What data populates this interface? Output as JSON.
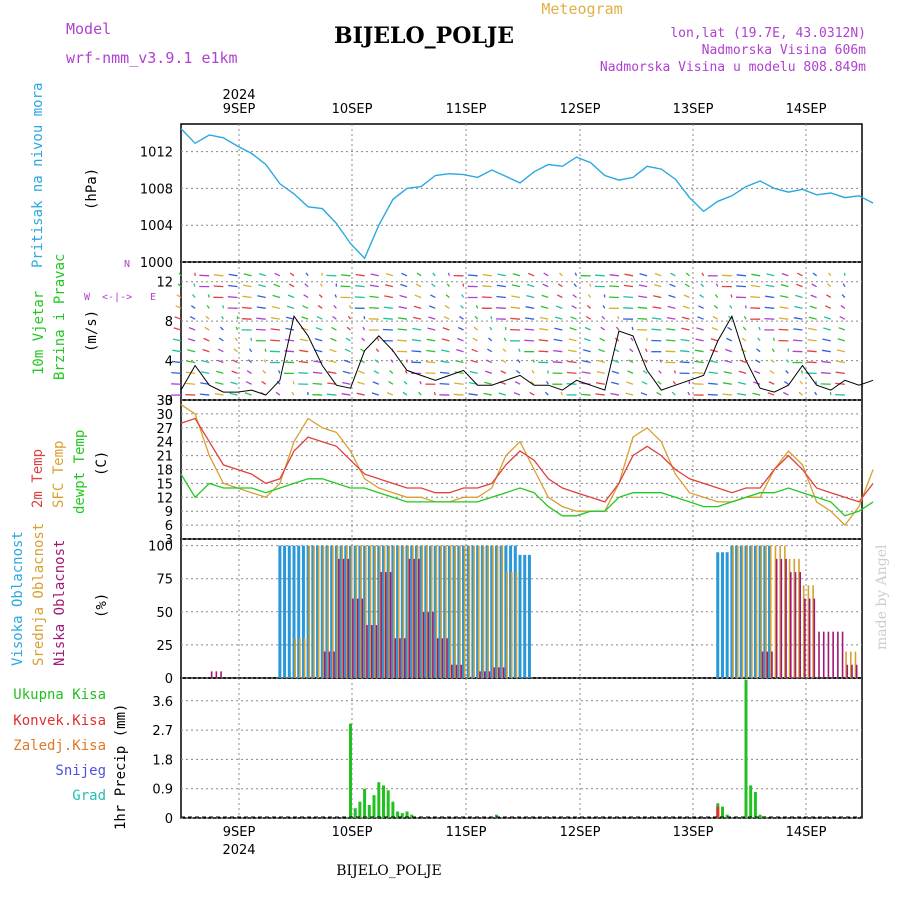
{
  "header": {
    "model_label": "Model",
    "model_value": "wrf-nmm_v3.9.1 e1km",
    "title": "BIJELO_POLJE",
    "meteogram": "Meteogram",
    "lonlat": "lon,lat (19.7E, 43.0312N)",
    "elev": "Nadmorska Visina 606m",
    "elev_model": "Nadmorska Visina u modelu 808.849m",
    "footer": "BIJELO_POLJE",
    "watermark": "made by Angel"
  },
  "colors": {
    "pressure": "#2aa8e0",
    "temp2m": "#e04040",
    "sfc": "#d8a030",
    "dew": "#22c822",
    "high_cloud": "#2898d8",
    "mid_cloud": "#d8a030",
    "low_cloud": "#a01878",
    "total_precip": "#22c022",
    "conv_precip": "#e03030",
    "purple": "#b040d0"
  },
  "x_axis": {
    "year": "2024",
    "days": [
      "9SEP",
      "10SEP",
      "11SEP",
      "12SEP",
      "13SEP",
      "14SEP"
    ]
  },
  "panels": {
    "pressure": {
      "label": "Pritisak na nivou mora",
      "unit": "(hPa)",
      "ticks": [
        "1012",
        "1008",
        "1004",
        "1000"
      ]
    },
    "wind": {
      "label1": "10m Vjetar",
      "label2": "Brzina i Pravac",
      "unit": "(m/s)",
      "ticks": [
        "12",
        "8",
        "4",
        "0"
      ],
      "compass": [
        "N",
        "<-|->",
        "E",
        "W"
      ]
    },
    "temp": {
      "label1": "2m Temp",
      "label2": "SFC Temp",
      "label3": "dewpt Temp",
      "unit": "(C)",
      "ticks": [
        "33",
        "30",
        "27",
        "24",
        "21",
        "18",
        "15",
        "12",
        "9",
        "6",
        "3"
      ]
    },
    "cloud": {
      "label1": "Visoka Oblacnost",
      "label2": "Srednja Oblacnost",
      "label3": "Niska Oblacnost",
      "unit": "(%)",
      "ticks": [
        "100",
        "75",
        "50",
        "25",
        "0"
      ]
    },
    "precip": {
      "labels": [
        "Ukupna Kisa",
        "Konvek.Kisa",
        "Zaledj.Kisa",
        "Snijeg",
        "Grad"
      ],
      "unit": "1hr Precip (mm)",
      "ticks": [
        "3.6",
        "2.7",
        "1.8",
        "0.9",
        "0"
      ]
    }
  },
  "chart_data": [
    {
      "type": "line",
      "panel": "pressure",
      "ylabel": "Pritisak na nivou mora (hPa)",
      "ylim": [
        1000,
        1015
      ],
      "x_hours": [
        0,
        3,
        6,
        9,
        12,
        15,
        18,
        21,
        24,
        27,
        30,
        33,
        36,
        39,
        42,
        45,
        48,
        51,
        54,
        57,
        60,
        63,
        66,
        69,
        72,
        75,
        78,
        81,
        84,
        87,
        90,
        93,
        96,
        99,
        102,
        105,
        108,
        111,
        114,
        117,
        120,
        123,
        126,
        129,
        132,
        135,
        138,
        141,
        144,
        147
      ],
      "values": [
        1014.5,
        1012.9,
        1013.8,
        1013.5,
        1012.6,
        1011.8,
        1010.6,
        1008.5,
        1007.4,
        1006.0,
        1005.8,
        1004.2,
        1002.0,
        1000.4,
        1004.0,
        1006.8,
        1008.0,
        1008.2,
        1009.4,
        1009.6,
        1009.5,
        1009.2,
        1010.0,
        1009.3,
        1008.6,
        1009.8,
        1010.6,
        1010.4,
        1011.4,
        1010.8,
        1009.4,
        1008.9,
        1009.2,
        1010.4,
        1010.1,
        1009.0,
        1007.0,
        1005.5,
        1006.6,
        1007.2,
        1008.2,
        1008.8,
        1008.0,
        1007.6,
        1007.9,
        1007.3,
        1007.5,
        1007.0,
        1007.2,
        1006.4
      ]
    },
    {
      "type": "line",
      "panel": "wind",
      "ylabel": "10m Vjetar Brzina i Pravac (m/s)",
      "ylim": [
        0,
        14
      ],
      "series": [
        {
          "name": "10m Vjetar",
          "x_hours": [
            0,
            3,
            6,
            9,
            12,
            15,
            18,
            21,
            24,
            27,
            30,
            33,
            36,
            39,
            42,
            45,
            48,
            51,
            54,
            57,
            60,
            63,
            66,
            69,
            72,
            75,
            78,
            81,
            84,
            87,
            90,
            93,
            96,
            99,
            102,
            105,
            108,
            111,
            114,
            117,
            120,
            123,
            126,
            129,
            132,
            135,
            138,
            141,
            144,
            147
          ],
          "values": [
            1.0,
            3.5,
            1.5,
            0.8,
            0.8,
            1.0,
            0.5,
            2.0,
            8.5,
            6.5,
            3.5,
            1.5,
            1.2,
            5.0,
            6.5,
            5.0,
            3.0,
            2.5,
            2.0,
            2.5,
            3.0,
            1.5,
            1.5,
            2.0,
            2.5,
            1.5,
            1.5,
            1.0,
            2.0,
            1.5,
            1.0,
            7.0,
            6.5,
            3.0,
            1.0,
            1.5,
            2.0,
            2.5,
            6.0,
            8.5,
            4.0,
            1.2,
            0.8,
            1.5,
            3.5,
            1.5,
            1.0,
            2.0,
            1.5,
            2.0
          ]
        }
      ]
    },
    {
      "type": "line",
      "panel": "temp",
      "ylabel": "(C)",
      "ylim": [
        3,
        33
      ],
      "x_hours": [
        0,
        3,
        6,
        9,
        12,
        15,
        18,
        21,
        24,
        27,
        30,
        33,
        36,
        39,
        42,
        45,
        48,
        51,
        54,
        57,
        60,
        63,
        66,
        69,
        72,
        75,
        78,
        81,
        84,
        87,
        90,
        93,
        96,
        99,
        102,
        105,
        108,
        111,
        114,
        117,
        120,
        123,
        126,
        129,
        132,
        135,
        138,
        141,
        144,
        147
      ],
      "series": [
        {
          "name": "2m Temp",
          "values": [
            28,
            29,
            24,
            19,
            18,
            17,
            15,
            16,
            22,
            25,
            24,
            23,
            20,
            17,
            16,
            15,
            14,
            14,
            13,
            13,
            14,
            14,
            15,
            19,
            22,
            20,
            16,
            14,
            13,
            12,
            11,
            15,
            21,
            23,
            21,
            18,
            16,
            15,
            14,
            13,
            14,
            14,
            18,
            21,
            18,
            14,
            13,
            12,
            11,
            15
          ]
        },
        {
          "name": "SFC Temp",
          "values": [
            32,
            30,
            21,
            15,
            14,
            13,
            12,
            15,
            24,
            29,
            27,
            26,
            22,
            16,
            14,
            13,
            12,
            12,
            11,
            11,
            12,
            12,
            14,
            21,
            24,
            18,
            12,
            10,
            9,
            9,
            9,
            15,
            25,
            27,
            24,
            17,
            13,
            12,
            11,
            11,
            12,
            12,
            18,
            22,
            19,
            11,
            9,
            6,
            10,
            18
          ]
        },
        {
          "name": "dewpt Temp",
          "values": [
            17,
            12,
            15,
            14,
            14,
            14,
            13,
            14,
            15,
            16,
            16,
            15,
            14,
            14,
            13,
            12,
            11,
            11,
            11,
            11,
            11,
            11,
            12,
            13,
            14,
            13,
            10,
            8,
            8,
            9,
            9,
            12,
            13,
            13,
            13,
            12,
            11,
            10,
            10,
            11,
            12,
            13,
            13,
            14,
            13,
            12,
            11,
            8,
            9,
            11
          ]
        }
      ]
    },
    {
      "type": "bar",
      "panel": "cloud",
      "ylabel": "(%)",
      "ylim": [
        0,
        100
      ],
      "x_hours": [
        0,
        3,
        6,
        9,
        12,
        15,
        18,
        21,
        24,
        27,
        30,
        33,
        36,
        39,
        42,
        45,
        48,
        51,
        54,
        57,
        60,
        63,
        66,
        69,
        72,
        75,
        78,
        81,
        84,
        87,
        90,
        93,
        96,
        99,
        102,
        105,
        108,
        111,
        114,
        117,
        120,
        123,
        126,
        129,
        132,
        135,
        138,
        141,
        144,
        147
      ],
      "series": [
        {
          "name": "Visoka Oblacnost",
          "values": [
            0,
            0,
            0,
            0,
            0,
            0,
            0,
            100,
            100,
            100,
            100,
            100,
            100,
            100,
            100,
            100,
            100,
            100,
            100,
            100,
            100,
            100,
            100,
            100,
            93,
            0,
            0,
            0,
            0,
            0,
            0,
            0,
            0,
            0,
            0,
            0,
            0,
            0,
            95,
            100,
            100,
            100,
            0,
            0,
            0,
            0,
            0,
            0,
            0,
            0
          ]
        },
        {
          "name": "Srednja Oblacnost",
          "values": [
            0,
            0,
            0,
            0,
            0,
            0,
            0,
            0,
            30,
            100,
            100,
            100,
            100,
            100,
            100,
            100,
            100,
            100,
            100,
            100,
            100,
            100,
            100,
            80,
            0,
            0,
            0,
            0,
            0,
            0,
            0,
            0,
            0,
            0,
            0,
            0,
            0,
            0,
            0,
            100,
            100,
            100,
            100,
            90,
            70,
            0,
            0,
            20,
            100,
            100
          ]
        },
        {
          "name": "Niska Oblacnost",
          "values": [
            0,
            0,
            5,
            0,
            0,
            0,
            0,
            0,
            0,
            0,
            20,
            90,
            60,
            40,
            80,
            30,
            90,
            50,
            30,
            10,
            0,
            5,
            8,
            0,
            0,
            0,
            0,
            0,
            0,
            0,
            0,
            0,
            0,
            0,
            0,
            0,
            0,
            0,
            0,
            0,
            0,
            20,
            90,
            80,
            60,
            35,
            35,
            10,
            0,
            0
          ]
        }
      ]
    },
    {
      "type": "bar",
      "panel": "precip",
      "ylabel": "1hr Precip (mm)",
      "ylim": [
        0,
        4.3
      ],
      "series": [
        {
          "name": "Ukupna Kisa",
          "x_hours": [
            36,
            37,
            38,
            39,
            40,
            41,
            42,
            43,
            44,
            45,
            46,
            47,
            48,
            49,
            67,
            114,
            115,
            116,
            120,
            121,
            122,
            123,
            124,
            145,
            146,
            147
          ],
          "values": [
            2.9,
            0.3,
            0.5,
            0.9,
            0.4,
            0.7,
            1.1,
            1.0,
            0.85,
            0.5,
            0.2,
            0.15,
            0.2,
            0.1,
            0.1,
            0.45,
            0.35,
            0.1,
            4.25,
            1.0,
            0.8,
            0.1,
            0.05,
            0.1,
            0.6,
            0.9
          ]
        },
        {
          "name": "Konvek.Kisa",
          "x_hours": [
            114,
            147
          ],
          "values": [
            0.35,
            0.9
          ]
        }
      ]
    }
  ]
}
